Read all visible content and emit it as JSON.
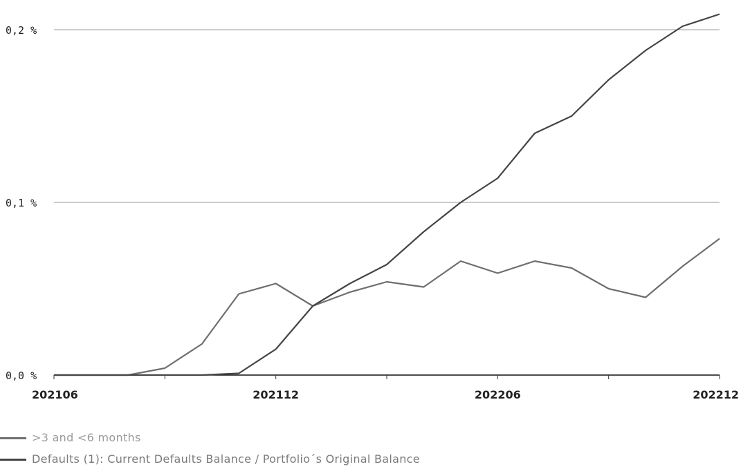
{
  "chart_data": {
    "type": "line",
    "categories": [
      "202106",
      "202107",
      "202108",
      "202109",
      "202110",
      "202111",
      "202112",
      "202201",
      "202202",
      "202203",
      "202204",
      "202205",
      "202206",
      "202207",
      "202208",
      "202209",
      "202210",
      "202211",
      "202212"
    ],
    "x_tick_labels": [
      "202106",
      "202112",
      "202206",
      "202212"
    ],
    "y_tick_labels": [
      "0,0 %",
      "0,1 %",
      "0,2 %"
    ],
    "ylim": [
      0,
      0.2
    ],
    "y_unit": "%",
    "grid": true,
    "legend_placement": "bottom-left",
    "series": [
      {
        "name": ">3 and <6 months",
        "color": "#6e6e6e",
        "values": [
          0.0,
          0.0,
          0.0,
          0.004,
          0.018,
          0.047,
          0.053,
          0.04,
          0.048,
          0.054,
          0.051,
          0.066,
          0.059,
          0.066,
          0.062,
          0.05,
          0.045,
          0.063,
          0.079
        ]
      },
      {
        "name": "Defaults (1): Current Defaults Balance / Portfolio´s Original Balance",
        "color": "#444444",
        "values": [
          0.0,
          0.0,
          0.0,
          0.0,
          0.0,
          0.001,
          0.015,
          0.04,
          0.053,
          0.064,
          0.083,
          0.1,
          0.114,
          0.14,
          0.15,
          0.171,
          0.188,
          0.202,
          0.209
        ]
      }
    ]
  }
}
